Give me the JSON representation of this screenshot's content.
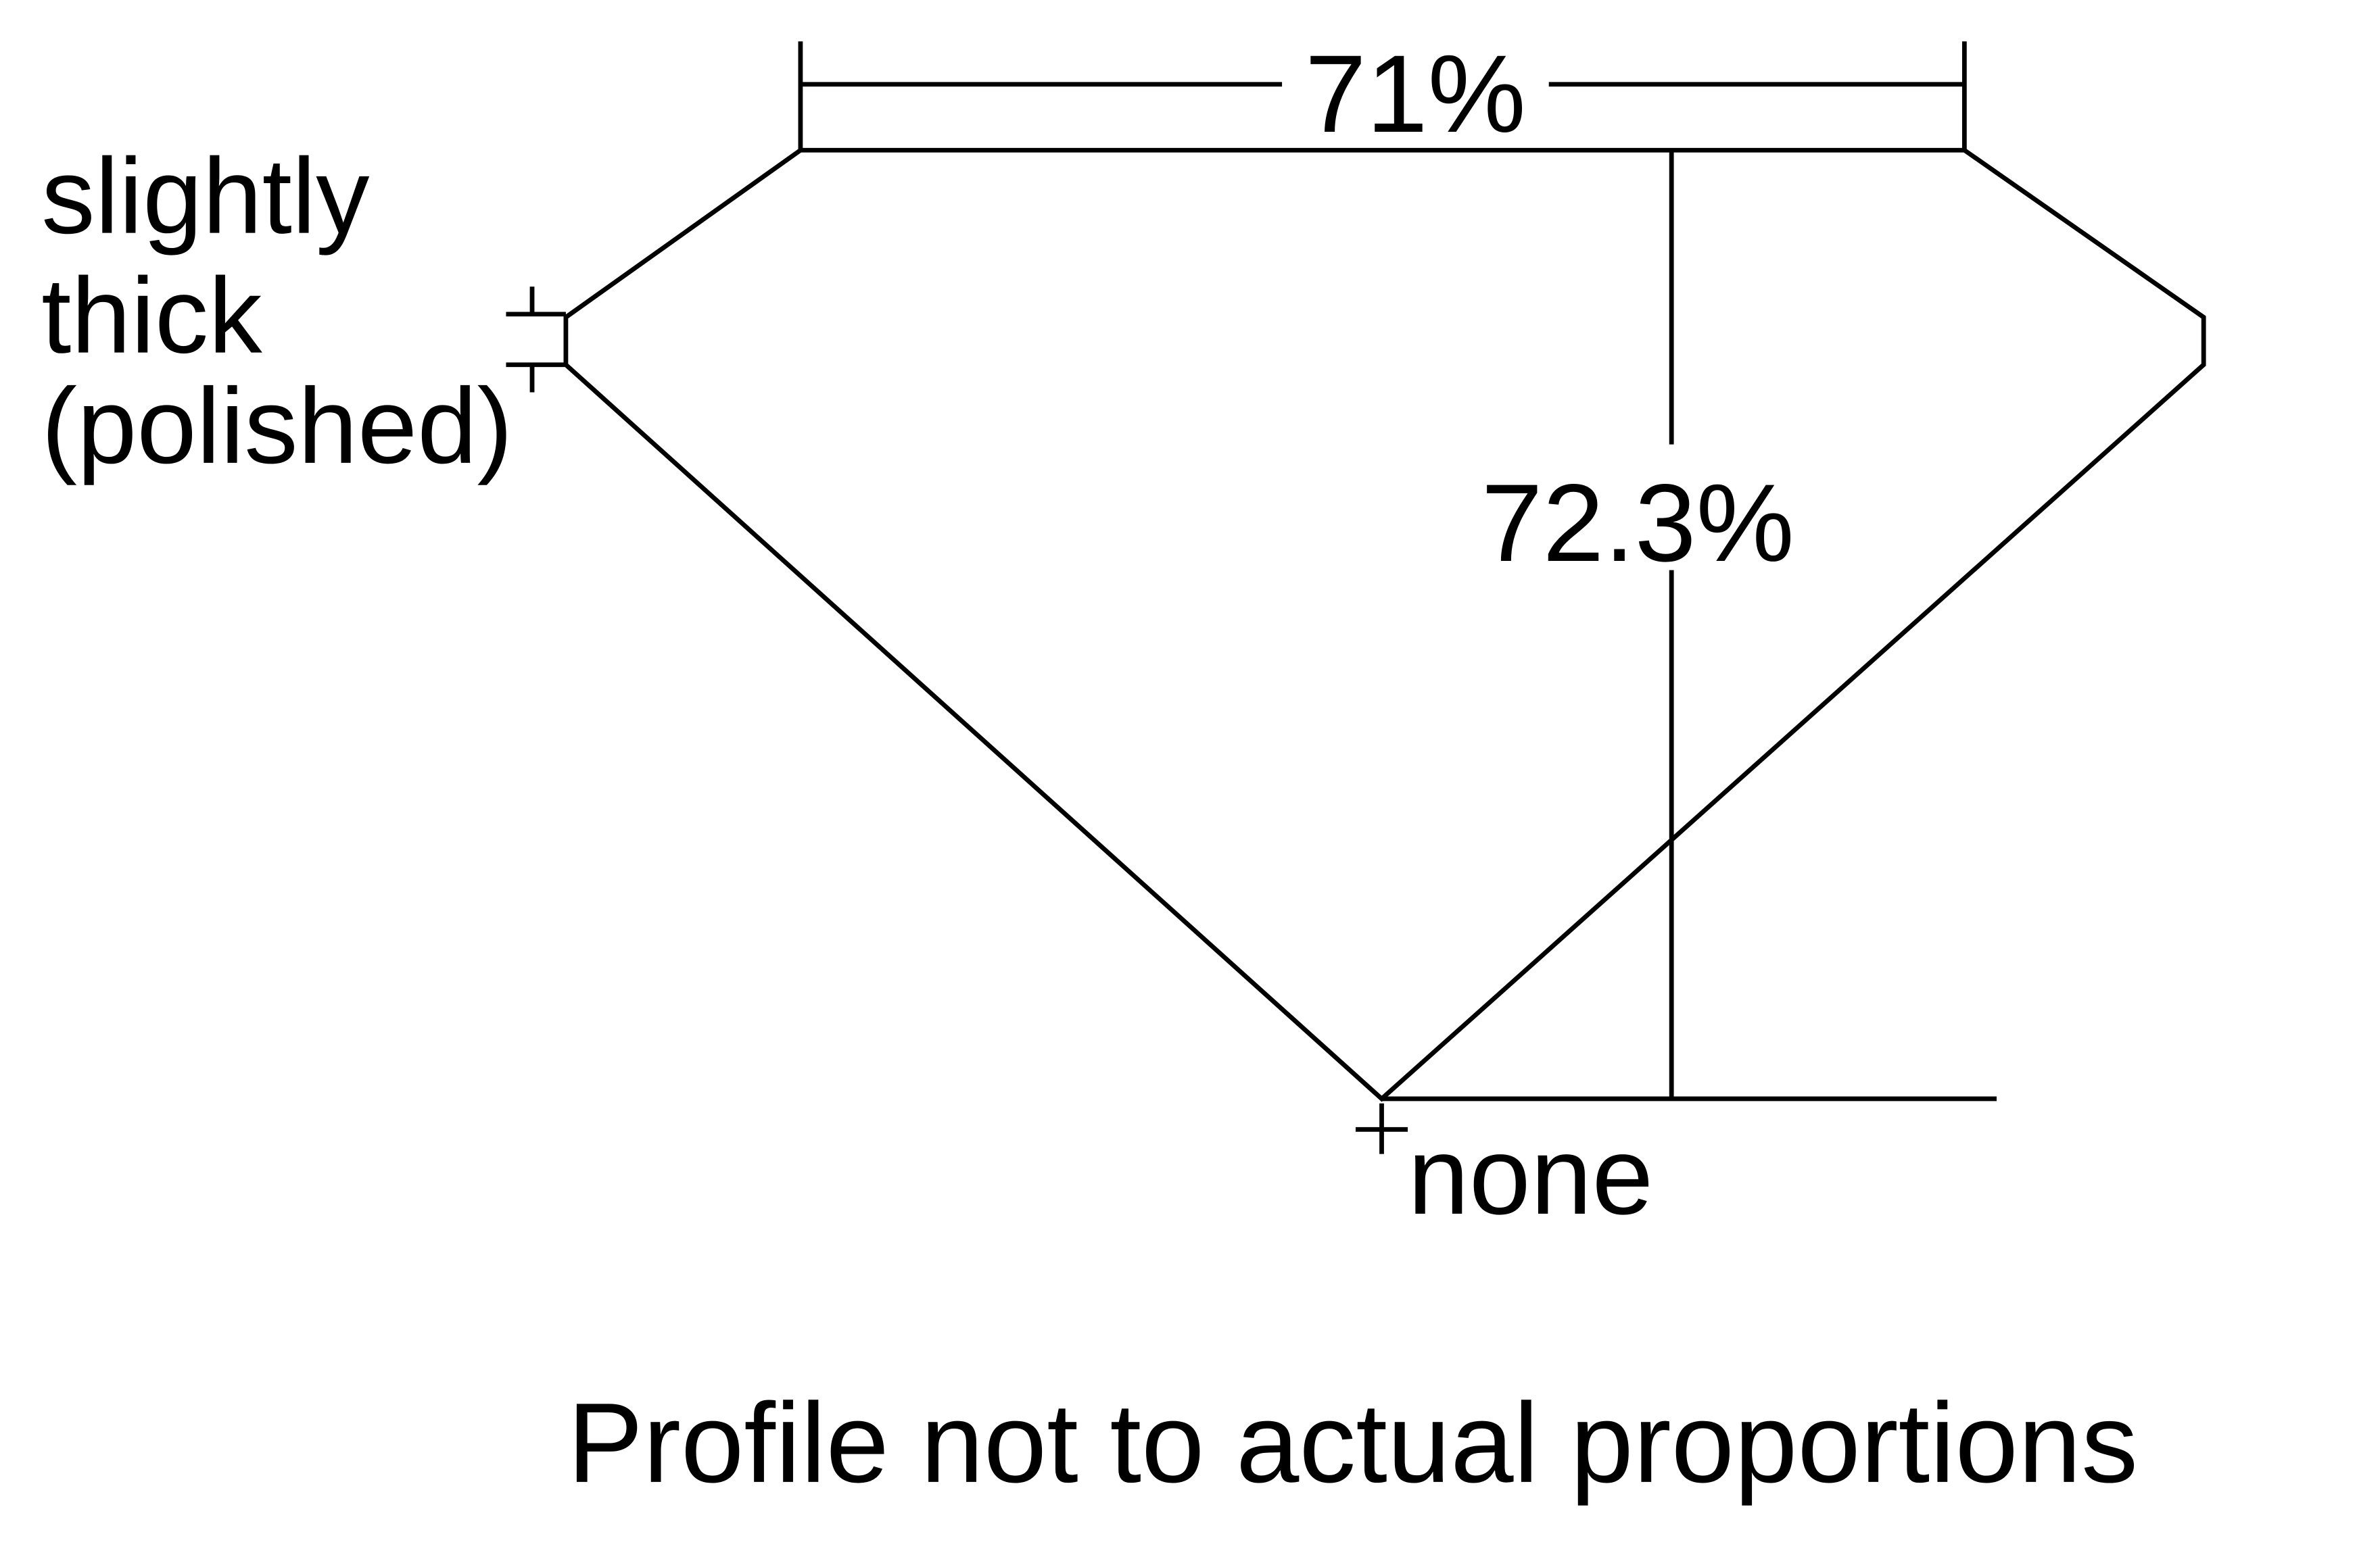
{
  "diagram": {
    "table_percent": "71%",
    "depth_percent": "72.3%",
    "girdle_label": [
      "slightly",
      "thick",
      "(polished)"
    ],
    "culet_label": "none",
    "caption": "Profile not to actual proportions",
    "line_color": "#000000",
    "background": "#ffffff"
  }
}
